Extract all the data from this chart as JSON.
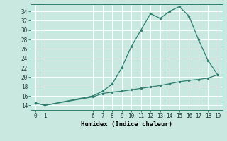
{
  "xlabel": "Humidex (Indice chaleur)",
  "bg_color": "#c8e8e0",
  "grid_color": "#b0d8d0",
  "line_color": "#2e7d6e",
  "x_upper": [
    0,
    1,
    6,
    7,
    8,
    9,
    10,
    11,
    12,
    13,
    14,
    15,
    16,
    17,
    18,
    19
  ],
  "y_upper": [
    14.5,
    14.0,
    16.0,
    17.0,
    18.5,
    22.0,
    26.5,
    30.0,
    33.5,
    32.5,
    34.0,
    35.0,
    33.0,
    28.0,
    23.5,
    20.5
  ],
  "x_lower": [
    0,
    1,
    6,
    7,
    8,
    9,
    10,
    11,
    12,
    13,
    14,
    15,
    16,
    17,
    18,
    19
  ],
  "y_lower": [
    14.5,
    14.0,
    15.8,
    16.5,
    16.8,
    17.0,
    17.3,
    17.6,
    17.9,
    18.2,
    18.6,
    19.0,
    19.3,
    19.5,
    19.8,
    20.5
  ],
  "xlim": [
    -0.5,
    19.5
  ],
  "ylim": [
    13.0,
    35.5
  ],
  "yticks": [
    14,
    16,
    18,
    20,
    22,
    24,
    26,
    28,
    30,
    32,
    34
  ],
  "xticks": [
    0,
    1,
    6,
    7,
    8,
    9,
    10,
    11,
    12,
    13,
    14,
    15,
    16,
    17,
    18,
    19
  ],
  "tick_label_fontsize": 5.5,
  "xlabel_fontsize": 6.5,
  "marker_size": 2.0,
  "line_width": 0.9
}
